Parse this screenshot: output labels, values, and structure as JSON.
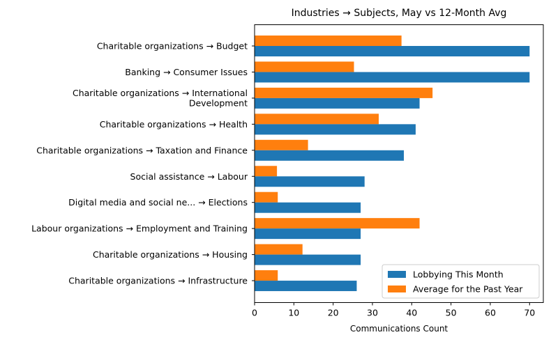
{
  "chart_data": {
    "type": "bar",
    "orientation": "horizontal",
    "title": "Industries → Subjects, May vs 12-Month Avg",
    "xlabel": "Communications Count",
    "ylabel": "",
    "xlim": [
      0,
      73.5
    ],
    "xticks": [
      0,
      10,
      20,
      30,
      40,
      50,
      60,
      70
    ],
    "grid": false,
    "legend_position": "bottom-right",
    "categories": [
      [
        "Charitable organizations → Budget"
      ],
      [
        "Banking → Consumer Issues"
      ],
      [
        "Charitable organizations → International",
        "Development"
      ],
      [
        "Charitable organizations → Health"
      ],
      [
        "Charitable organizations → Taxation and Finance"
      ],
      [
        "Social assistance → Labour"
      ],
      [
        "Digital media and social ne... → Elections"
      ],
      [
        "Labour organizations → Employment and Training"
      ],
      [
        "Charitable organizations → Housing"
      ],
      [
        "Charitable organizations → Infrastructure"
      ]
    ],
    "series": [
      {
        "name": "Lobbying This Month",
        "color": "#1f77b4",
        "values": [
          70,
          70,
          42,
          41,
          38,
          28,
          27,
          27,
          27,
          26
        ]
      },
      {
        "name": "Average for the Past Year",
        "color": "#ff7f0e",
        "values": [
          37.4,
          25.3,
          45.3,
          31.6,
          13.6,
          5.7,
          5.9,
          42.0,
          12.2,
          5.9
        ]
      }
    ]
  }
}
